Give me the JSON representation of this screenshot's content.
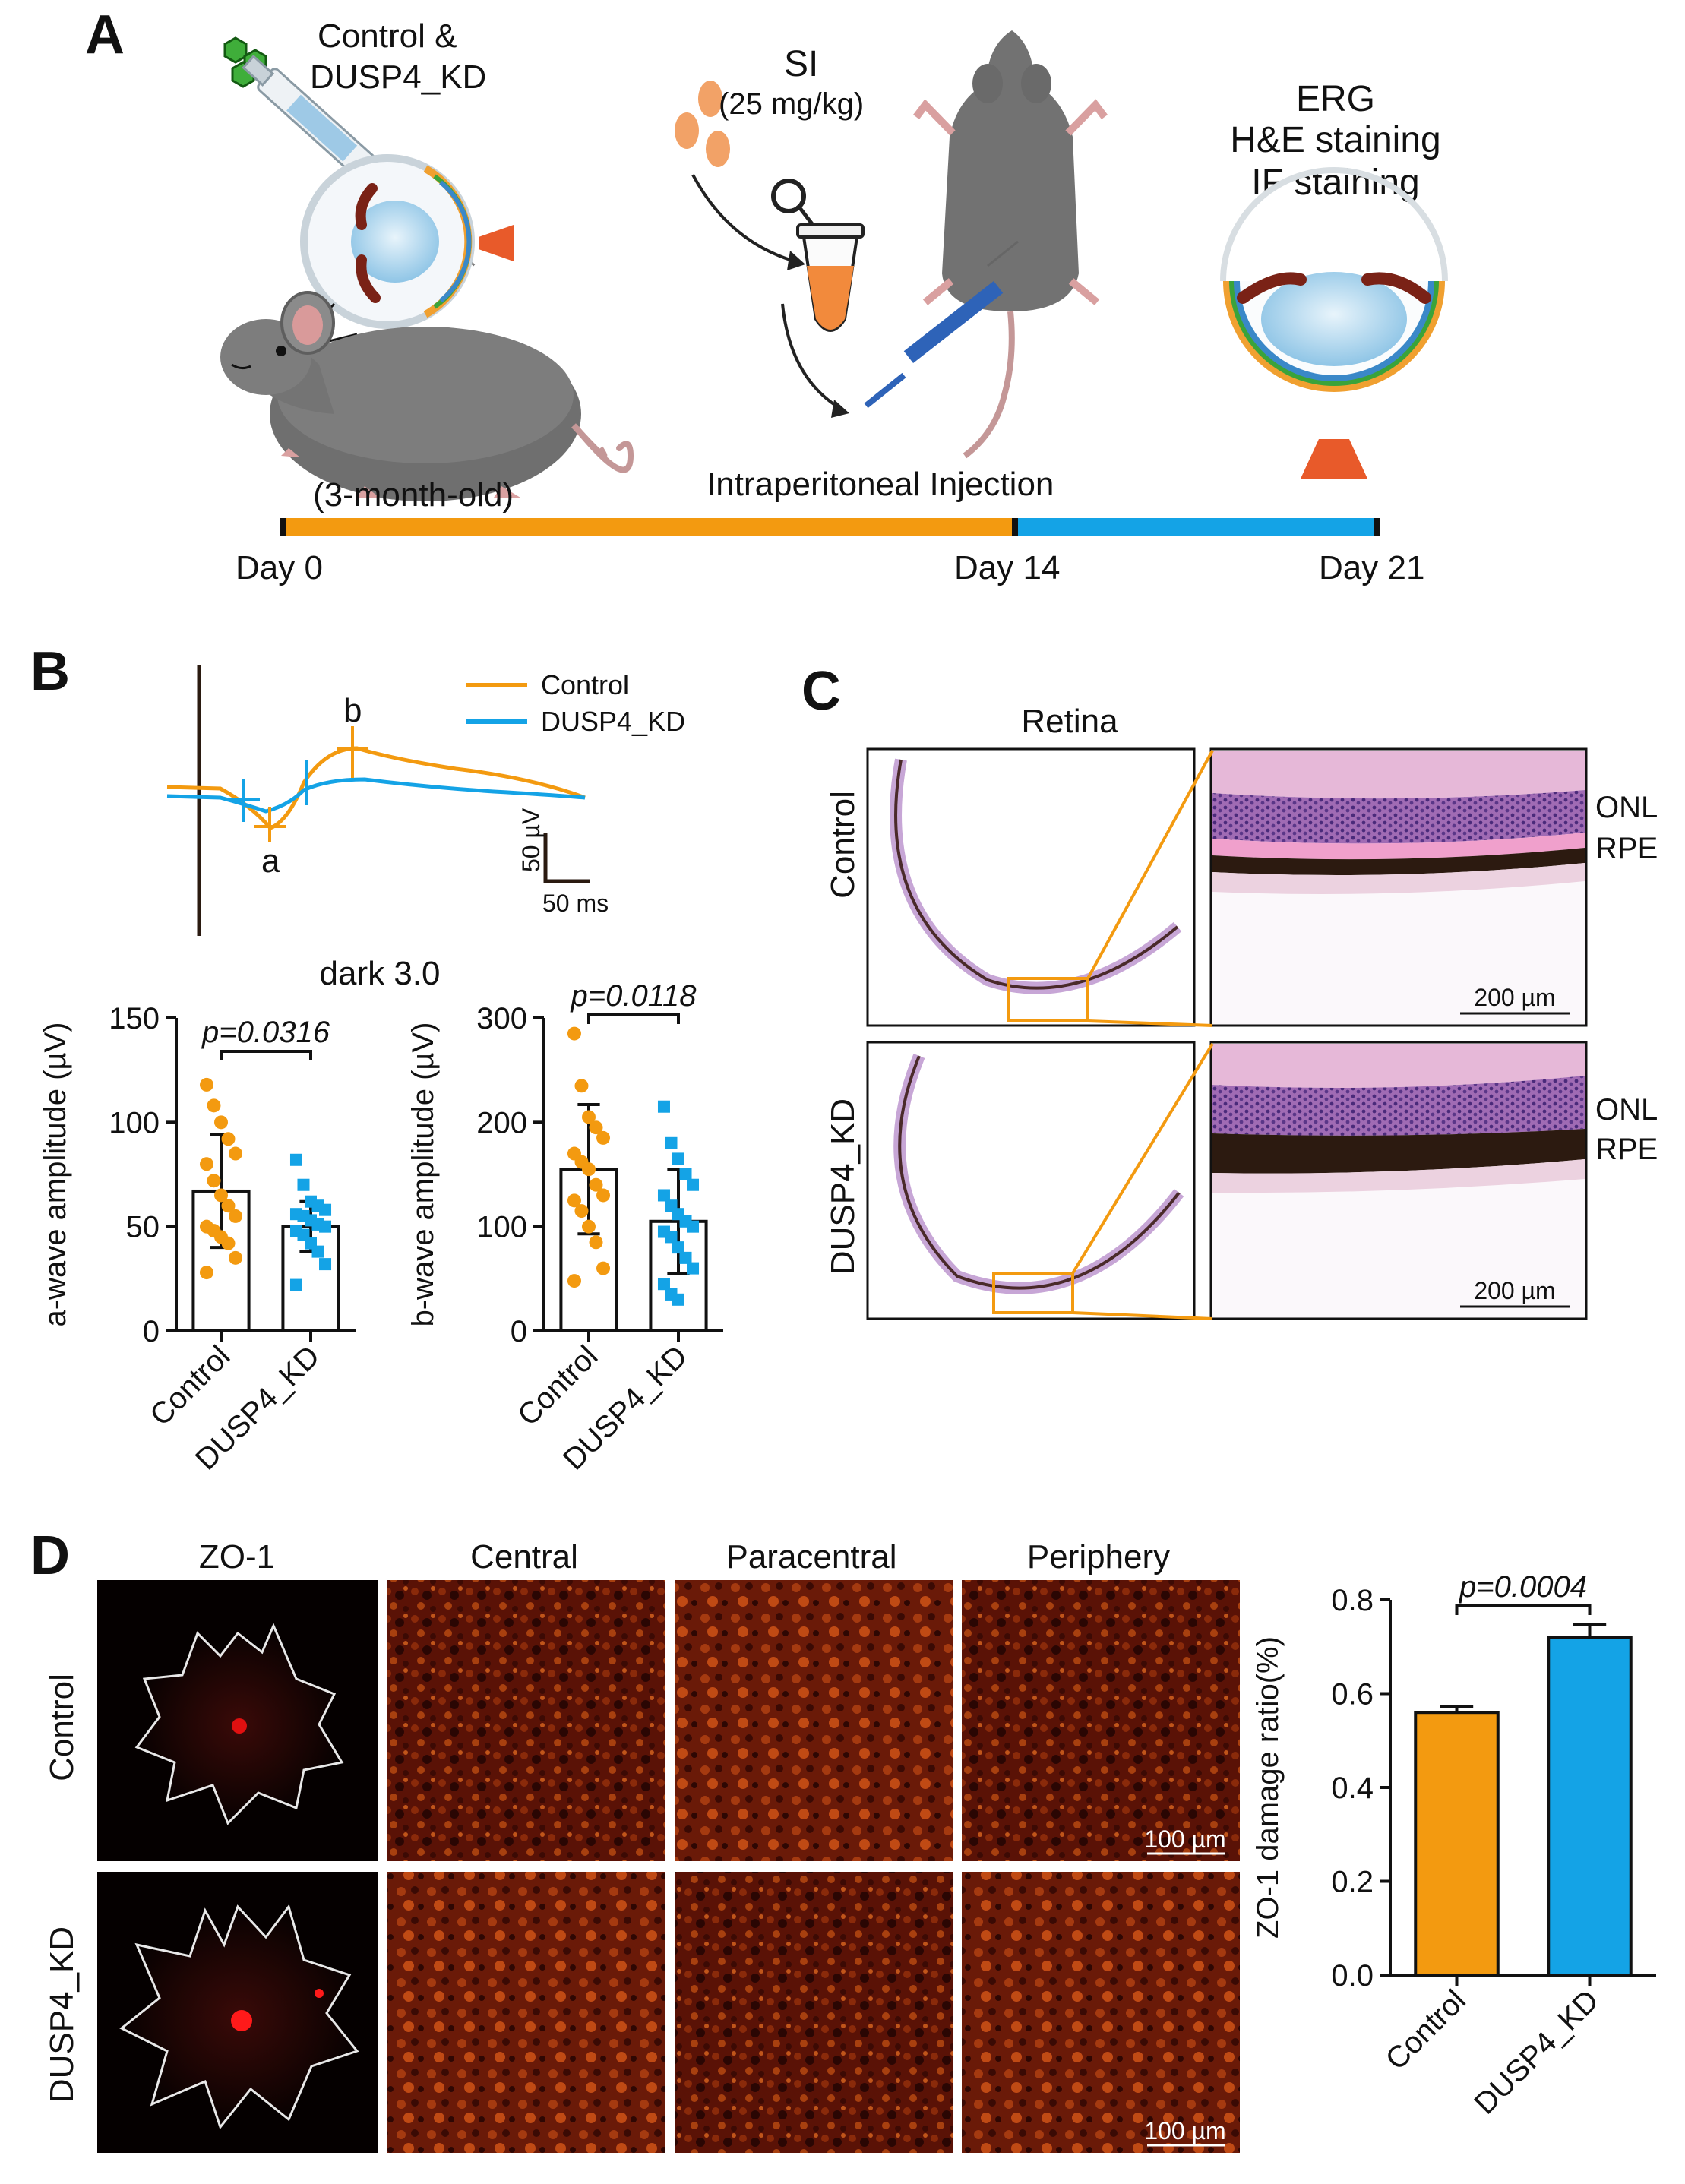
{
  "panels": {
    "a": "A",
    "b": "B",
    "c": "C",
    "d": "D"
  },
  "panel_a": {
    "injection_label": [
      "Control &",
      "DUSP4_KD"
    ],
    "si_label": "SI",
    "si_dose": "(25 mg/kg)",
    "age_label": "(3-month-old)",
    "route_label": "Intraperitoneal Injection",
    "readouts": [
      "ERG",
      "H&E staining",
      "IF staining"
    ],
    "timeline": [
      "Day 0",
      "Day 14",
      "Day 21"
    ],
    "colors": {
      "phase1": "#F39A10",
      "phase2": "#14A3E6"
    }
  },
  "panel_b": {
    "legend": [
      "Control",
      "DUSP4_KD"
    ],
    "wave_labels": {
      "a": "a",
      "b": "b"
    },
    "scale_amplitude": "50 µV",
    "scale_time": "50 ms",
    "condition": "dark 3.0"
  },
  "panel_c": {
    "header": "Retina",
    "rows": [
      "Control",
      "DUSP4_KD"
    ],
    "layers": [
      "ONL",
      "RPE"
    ],
    "scale_bar": "200 µm"
  },
  "panel_d": {
    "columns": [
      "ZO-1",
      "Central",
      "Paracentral",
      "Periphery"
    ],
    "rows": [
      "Control",
      "DUSP4_KD"
    ],
    "scale_bar": "100 µm"
  },
  "chart_data": [
    {
      "id": "a-wave",
      "type": "bar",
      "title": "dark 3.0",
      "ylabel": "a-wave amplitude (µV)",
      "xlabel": "",
      "categories": [
        "Control",
        "DUSP4_KD"
      ],
      "values": [
        67,
        50
      ],
      "errors": [
        27,
        12
      ],
      "ylim": [
        0,
        150
      ],
      "yticks": [
        "0",
        "50",
        "100",
        "150"
      ],
      "pvalue": "p=0.0316",
      "points": [
        [
          118,
          108,
          100,
          92,
          85,
          80,
          72,
          65,
          60,
          55,
          50,
          48,
          45,
          42,
          35,
          28
        ],
        [
          82,
          70,
          62,
          60,
          58,
          56,
          55,
          53,
          51,
          50,
          48,
          46,
          42,
          38,
          32,
          22
        ]
      ],
      "colors": [
        "#F39A10",
        "#14A3E6"
      ]
    },
    {
      "id": "b-wave",
      "type": "bar",
      "ylabel": "b-wave amplitude (µV)",
      "xlabel": "",
      "categories": [
        "Control",
        "DUSP4_KD"
      ],
      "values": [
        155,
        105
      ],
      "errors": [
        62,
        50
      ],
      "ylim": [
        0,
        300
      ],
      "yticks": [
        "0",
        "100",
        "200",
        "300"
      ],
      "pvalue": "p=0.0118",
      "points": [
        [
          285,
          235,
          205,
          195,
          185,
          170,
          162,
          155,
          140,
          130,
          125,
          115,
          100,
          85,
          60,
          48
        ],
        [
          215,
          180,
          165,
          150,
          140,
          130,
          120,
          112,
          105,
          100,
          95,
          90,
          80,
          70,
          60,
          45,
          35,
          30
        ]
      ],
      "colors": [
        "#F39A10",
        "#14A3E6"
      ]
    },
    {
      "id": "zo1",
      "type": "bar",
      "ylabel": "ZO-1 damage ratio(%)",
      "xlabel": "",
      "categories": [
        "Control",
        "DUSP4_KD"
      ],
      "values": [
        0.56,
        0.72
      ],
      "errors": [
        0.012,
        0.028
      ],
      "ylim": [
        0,
        0.8
      ],
      "yticks": [
        "0.0",
        "0.2",
        "0.4",
        "0.6",
        "0.8"
      ],
      "pvalue": "p=0.0004",
      "colors": [
        "#F39A10",
        "#14A3E6"
      ]
    }
  ]
}
